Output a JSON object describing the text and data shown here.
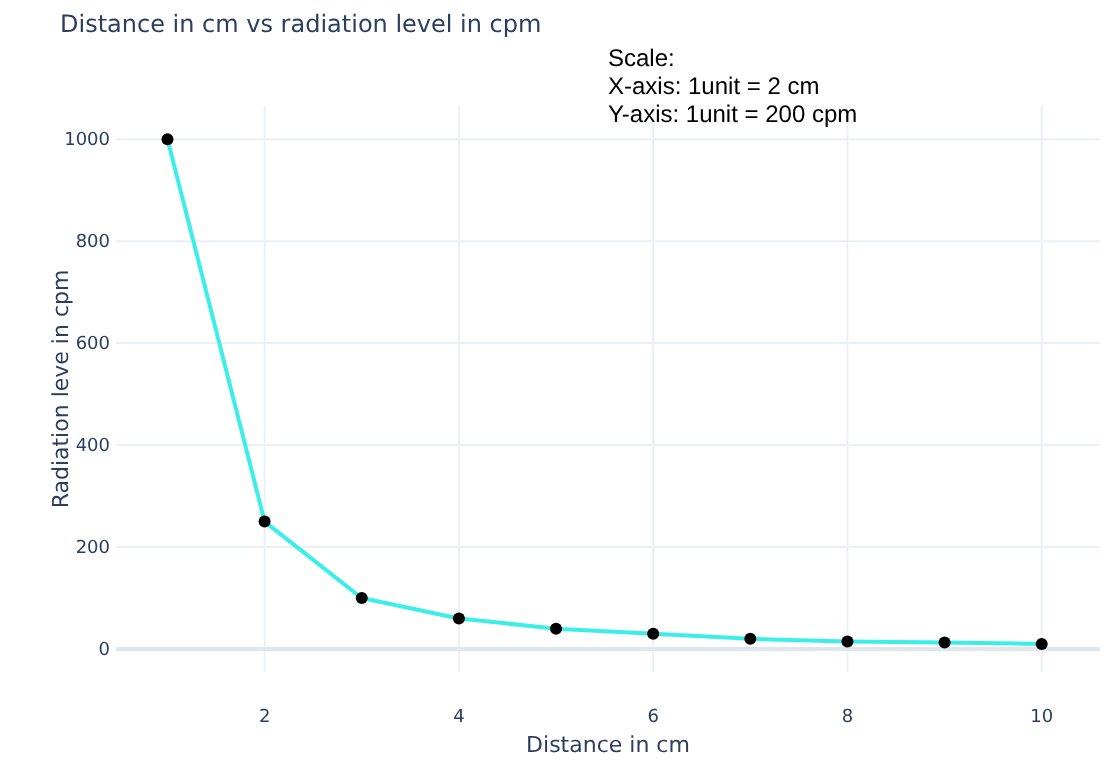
{
  "chart_data": {
    "type": "line",
    "title": "Distance in cm vs radiation level in cpm",
    "xlabel": "Distance in cm",
    "ylabel": "Radiation leve in cpm",
    "annotations": [
      "Scale:\nX-axis: 1unit = 2 cm\nY-axis: 1unit = 200 cpm"
    ],
    "x": [
      1,
      2,
      3,
      4,
      5,
      6,
      7,
      8,
      9,
      10
    ],
    "series": [
      {
        "color": "#3ceee8",
        "values": [
          1000,
          250,
          100,
          60,
          40,
          30,
          20,
          15,
          13,
          10
        ]
      }
    ],
    "xlim": [
      0.47,
      10.6
    ],
    "xticks": [
      2,
      4,
      6,
      8,
      10
    ],
    "ylim": [
      -45,
      1065
    ],
    "yticks": [
      0,
      200,
      400,
      600,
      800,
      1000
    ],
    "grid": true,
    "marker": "circle",
    "line_style": "solid"
  }
}
